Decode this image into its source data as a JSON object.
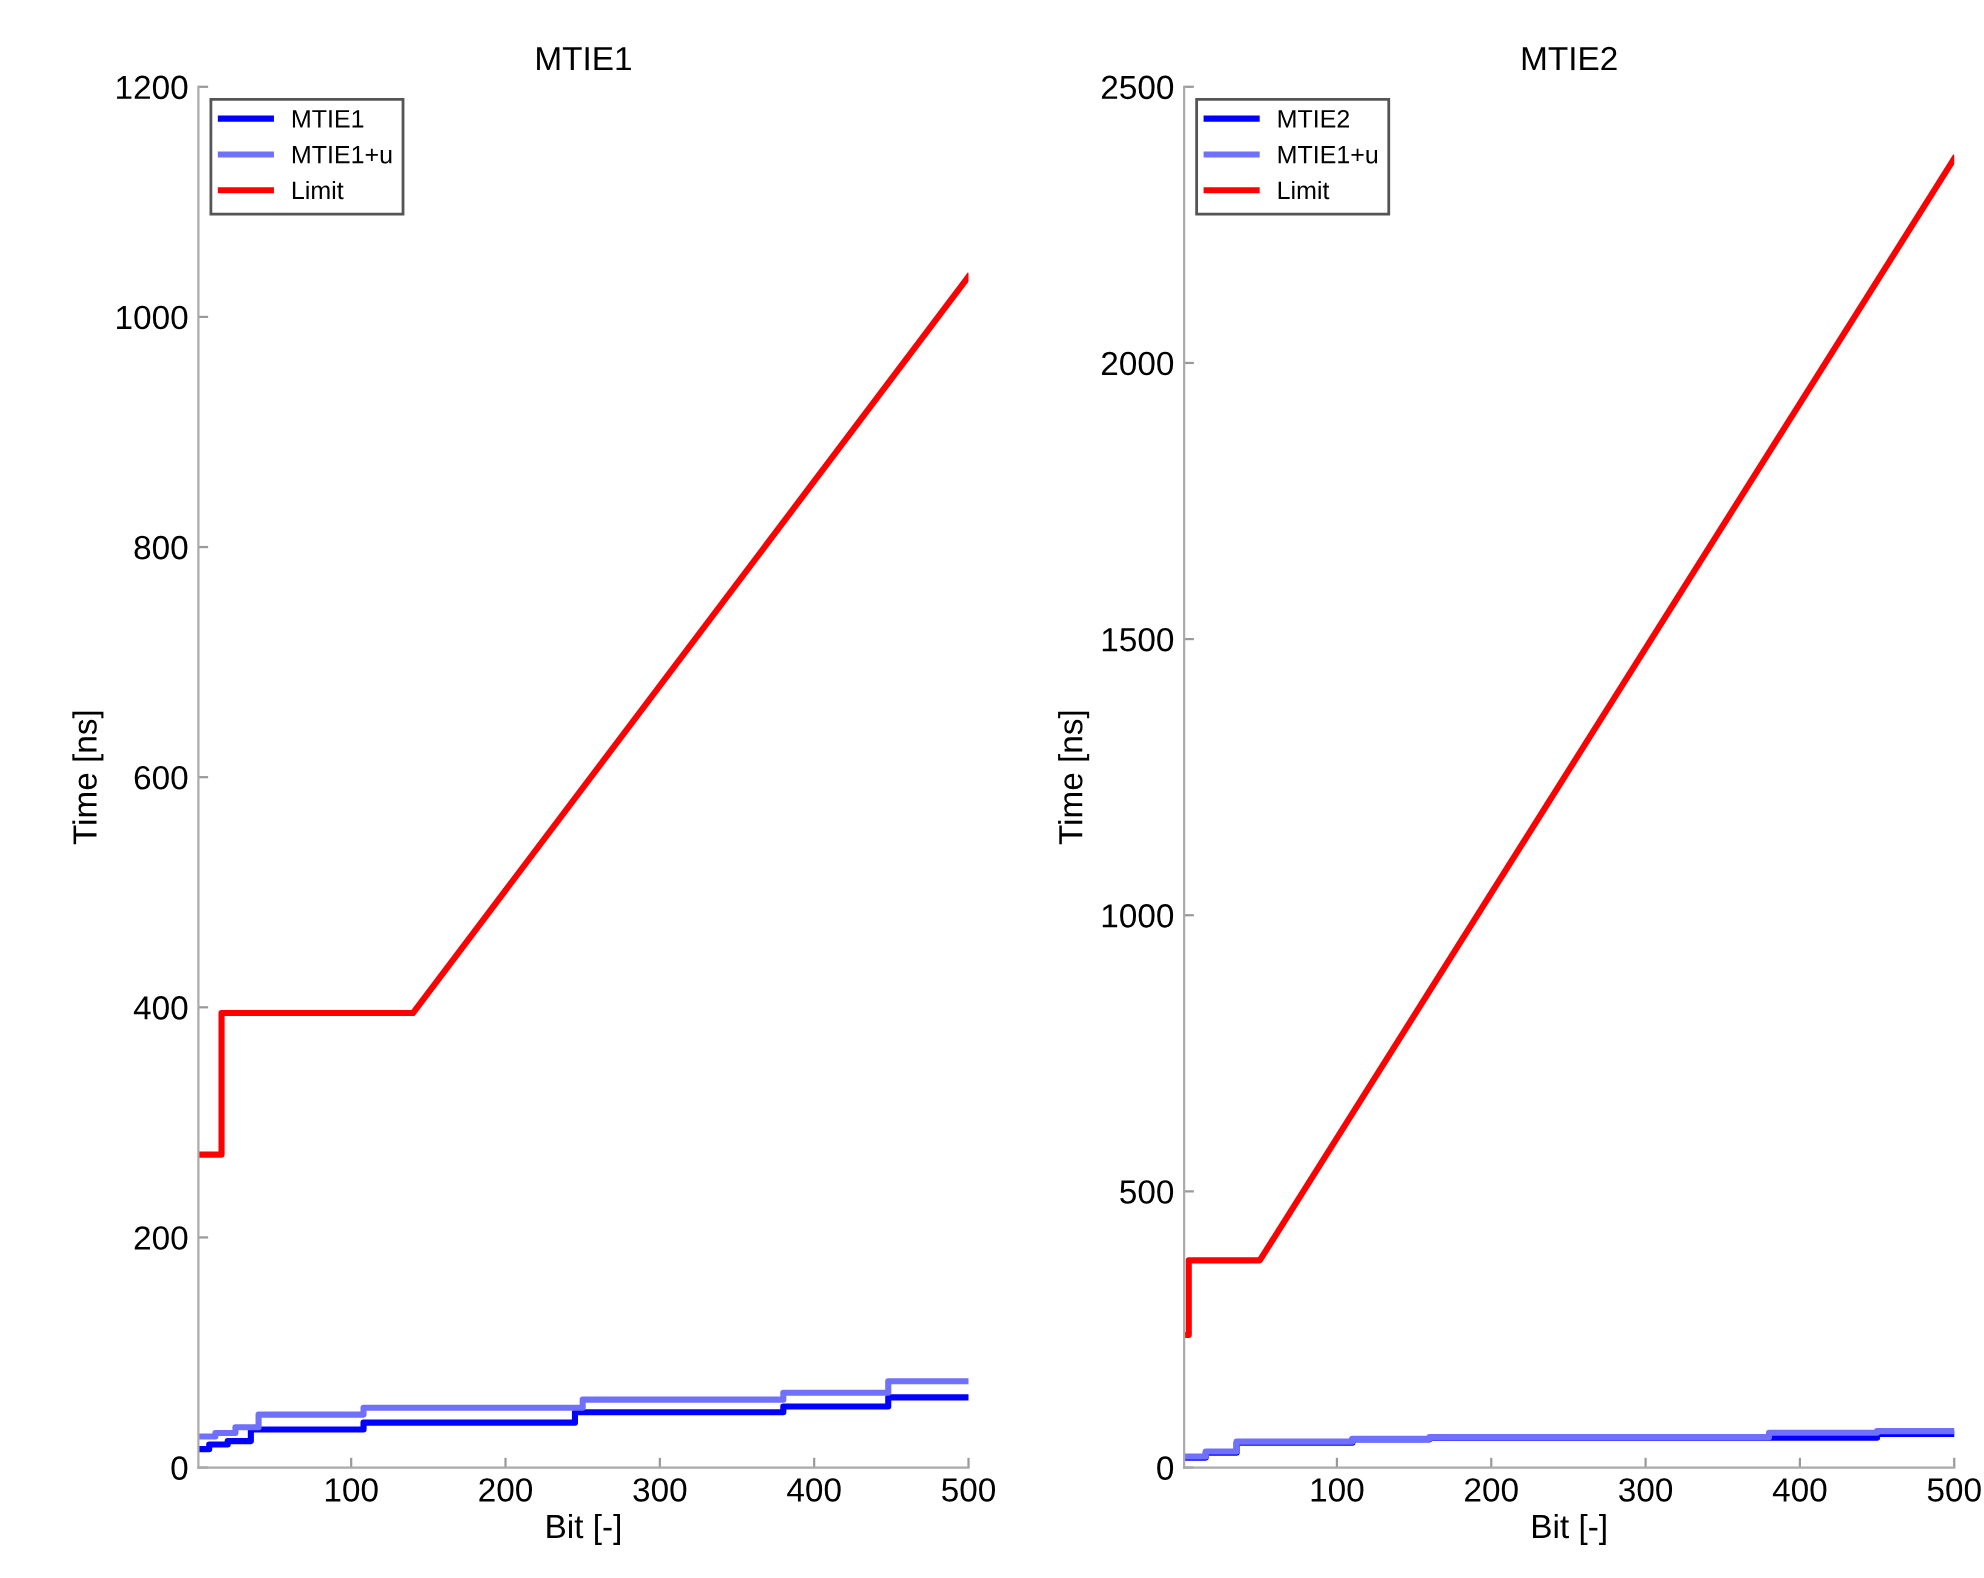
{
  "chart_data": [
    {
      "type": "step",
      "title": "MTIE1",
      "xlabel": "Bit [-]",
      "ylabel": "Time [ns]",
      "xlim": [
        1,
        500
      ],
      "xticks": [
        100,
        200,
        300,
        400,
        500
      ],
      "ylim": [
        0,
        1200
      ],
      "yticks": [
        0,
        200,
        400,
        600,
        800,
        1000,
        1200
      ],
      "grid": false,
      "legend": "top left",
      "series": [
        {
          "name": "MTIE1",
          "color": "#0000ff",
          "x": [
            1,
            8,
            20,
            35,
            108,
            245,
            380,
            448,
            500
          ],
          "values": [
            16,
            20,
            23,
            33,
            39,
            48,
            53,
            61,
            61
          ]
        },
        {
          "name": "MTIE1+u",
          "color": "#7070ff",
          "x": [
            1,
            12,
            25,
            40,
            108,
            250,
            380,
            448,
            500
          ],
          "values": [
            27,
            30,
            35,
            46,
            52,
            59,
            65,
            75,
            75
          ]
        },
        {
          "name": "Limit",
          "type": "line",
          "color": "#ff0000",
          "x": [
            1,
            16,
            16,
            140,
            500
          ],
          "values": [
            272,
            272,
            395,
            395,
            1035
          ]
        }
      ]
    },
    {
      "type": "step",
      "title": "MTIE2",
      "xlabel": "Bit [-]",
      "ylabel": "Time [ns]",
      "xlim": [
        1,
        500
      ],
      "xticks": [
        100,
        200,
        300,
        400,
        500
      ],
      "ylim": [
        0,
        2500
      ],
      "yticks": [
        0,
        500,
        1000,
        1500,
        2000,
        2500
      ],
      "grid": false,
      "legend": "top left",
      "series": [
        {
          "name": "MTIE2",
          "color": "#0000ff",
          "x": [
            1,
            15,
            35,
            110,
            160,
            450,
            500
          ],
          "values": [
            18,
            27,
            45,
            51,
            54,
            61,
            61
          ]
        },
        {
          "name": "MTIE1+u",
          "color": "#7070ff",
          "x": [
            1,
            15,
            35,
            110,
            160,
            380,
            450,
            500
          ],
          "values": [
            20,
            29,
            47,
            52,
            55,
            63,
            66,
            66
          ]
        },
        {
          "name": "Limit",
          "type": "line",
          "color": "#ff0000",
          "x": [
            1,
            4,
            4,
            50,
            500
          ],
          "values": [
            240,
            240,
            375,
            375,
            2370
          ]
        }
      ]
    }
  ]
}
